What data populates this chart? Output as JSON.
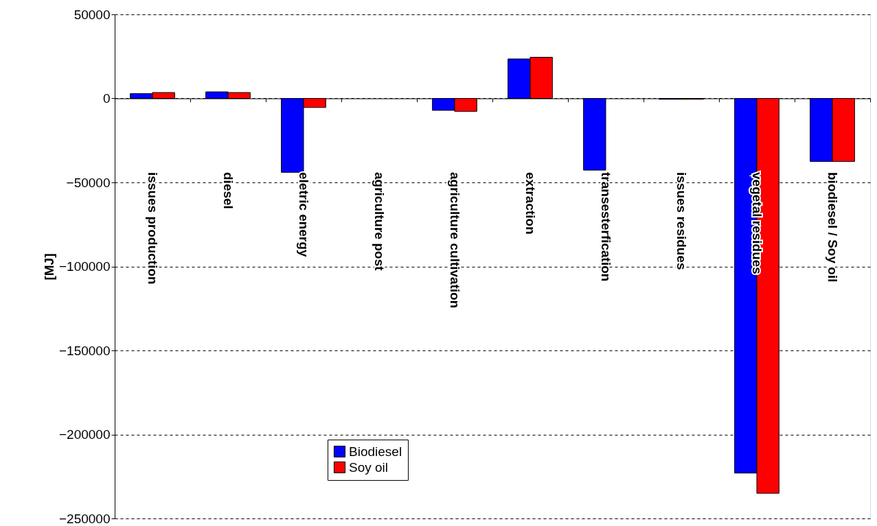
{
  "chart_data": {
    "type": "bar",
    "ylabel": "[MJ]",
    "categories": [
      "issues production",
      "diesel",
      "eletric energy",
      "agriculture post",
      "agriculture cultivation",
      "extraction",
      "transesterfication",
      "issues residues",
      "vegetal residues",
      "biodiesel / Soy oil"
    ],
    "series": [
      {
        "name": "Biodiesel",
        "color": "#0000ff",
        "values": [
          2900,
          3900,
          -44000,
          0,
          -7100,
          23500,
          -42700,
          -500,
          -223000,
          -37500
        ]
      },
      {
        "name": "Soy oil",
        "color": "#ff0000",
        "values": [
          3500,
          3500,
          -5400,
          0,
          -7700,
          24500,
          0,
          -500,
          -235000,
          -37500
        ]
      }
    ],
    "ylim": [
      -250000,
      50000
    ],
    "yticks": [
      -250000,
      -200000,
      -150000,
      -100000,
      -50000,
      0,
      50000
    ],
    "grid": "y",
    "legend": "bottom left"
  }
}
